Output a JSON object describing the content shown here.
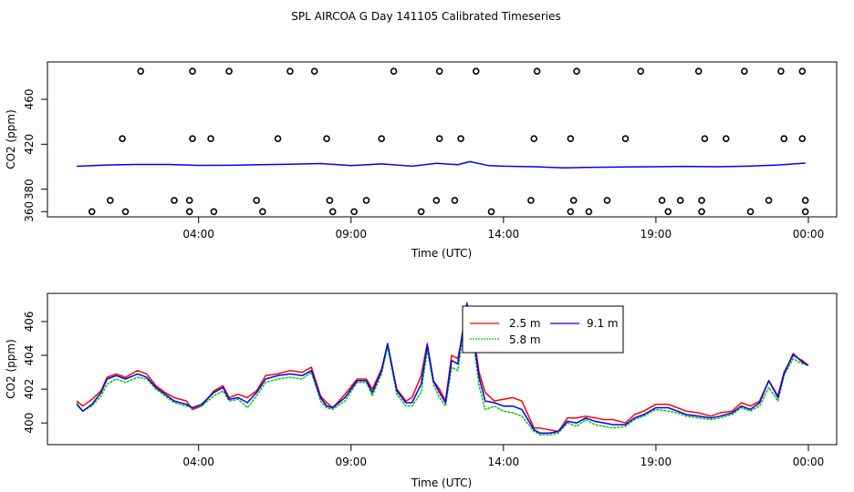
{
  "title": "SPL AIRCOA G  Day 141105  Calibrated Timeseries",
  "chart_data": [
    {
      "type": "line",
      "panel": "top",
      "xlabel": "Time (UTC)",
      "ylabel": "CO2 (ppm)",
      "xlim": [
        0,
        24
      ],
      "ylim": [
        357,
        490
      ],
      "x_ticks": [
        {
          "value": 4,
          "label": "04:00"
        },
        {
          "value": 9,
          "label": "09:00"
        },
        {
          "value": 14,
          "label": "14:00"
        },
        {
          "value": 19,
          "label": "19:00"
        },
        {
          "value": 24,
          "label": "00:00"
        }
      ],
      "y_ticks": [
        {
          "value": 360,
          "label": "360"
        },
        {
          "value": 380,
          "label": "380"
        },
        {
          "value": 420,
          "label": "420"
        },
        {
          "value": 460,
          "label": "460"
        }
      ],
      "series": [
        {
          "name": "mean",
          "color": "#0000ff",
          "x": [
            0,
            1,
            2,
            3,
            4,
            5,
            6,
            7,
            8,
            9,
            10,
            11,
            11.8,
            12.5,
            12.9,
            13.5,
            14,
            15,
            16,
            17,
            18,
            19,
            20,
            21,
            22,
            23,
            23.9
          ],
          "y": [
            400.4,
            401.5,
            402,
            402,
            401.2,
            401.3,
            401.8,
            402.2,
            402.8,
            401,
            402.5,
            400.5,
            403,
            401.8,
            404.5,
            401,
            400.5,
            400,
            399,
            399.5,
            399.8,
            400,
            400.3,
            400,
            400.5,
            401.5,
            403.2
          ]
        }
      ],
      "calibration_points": [
        {
          "x": 0.5,
          "y": 360
        },
        {
          "x": 1.6,
          "y": 360
        },
        {
          "x": 3.7,
          "y": 360
        },
        {
          "x": 4.5,
          "y": 360
        },
        {
          "x": 6.1,
          "y": 360
        },
        {
          "x": 8.4,
          "y": 360
        },
        {
          "x": 9.1,
          "y": 360
        },
        {
          "x": 11.3,
          "y": 360
        },
        {
          "x": 13.6,
          "y": 360
        },
        {
          "x": 16.2,
          "y": 360
        },
        {
          "x": 16.8,
          "y": 360
        },
        {
          "x": 19.4,
          "y": 360
        },
        {
          "x": 20.5,
          "y": 360
        },
        {
          "x": 22.1,
          "y": 360
        },
        {
          "x": 23.9,
          "y": 360
        },
        {
          "x": 1.1,
          "y": 370
        },
        {
          "x": 3.2,
          "y": 370
        },
        {
          "x": 3.7,
          "y": 370
        },
        {
          "x": 5.9,
          "y": 370
        },
        {
          "x": 8.3,
          "y": 370
        },
        {
          "x": 9.5,
          "y": 370
        },
        {
          "x": 11.8,
          "y": 370
        },
        {
          "x": 12.4,
          "y": 370
        },
        {
          "x": 14.9,
          "y": 370
        },
        {
          "x": 16.3,
          "y": 370
        },
        {
          "x": 17.4,
          "y": 370
        },
        {
          "x": 19.2,
          "y": 370
        },
        {
          "x": 19.8,
          "y": 370
        },
        {
          "x": 20.5,
          "y": 370
        },
        {
          "x": 22.7,
          "y": 370
        },
        {
          "x": 23.9,
          "y": 370
        },
        {
          "x": 1.5,
          "y": 425
        },
        {
          "x": 3.8,
          "y": 425
        },
        {
          "x": 4.4,
          "y": 425
        },
        {
          "x": 6.6,
          "y": 425
        },
        {
          "x": 8.2,
          "y": 425
        },
        {
          "x": 10.0,
          "y": 425
        },
        {
          "x": 11.9,
          "y": 425
        },
        {
          "x": 12.6,
          "y": 425
        },
        {
          "x": 15.0,
          "y": 425
        },
        {
          "x": 16.2,
          "y": 425
        },
        {
          "x": 18.0,
          "y": 425
        },
        {
          "x": 20.6,
          "y": 425
        },
        {
          "x": 21.3,
          "y": 425
        },
        {
          "x": 23.2,
          "y": 425
        },
        {
          "x": 23.8,
          "y": 425
        },
        {
          "x": 2.1,
          "y": 485
        },
        {
          "x": 3.8,
          "y": 485
        },
        {
          "x": 5.0,
          "y": 485
        },
        {
          "x": 7.0,
          "y": 485
        },
        {
          "x": 7.8,
          "y": 485
        },
        {
          "x": 10.4,
          "y": 485
        },
        {
          "x": 11.9,
          "y": 485
        },
        {
          "x": 13.1,
          "y": 485
        },
        {
          "x": 15.1,
          "y": 485
        },
        {
          "x": 16.4,
          "y": 485
        },
        {
          "x": 18.5,
          "y": 485
        },
        {
          "x": 20.4,
          "y": 485
        },
        {
          "x": 21.9,
          "y": 485
        },
        {
          "x": 23.1,
          "y": 485
        },
        {
          "x": 23.8,
          "y": 485
        }
      ]
    },
    {
      "type": "line",
      "panel": "bottom",
      "xlabel": "Time (UTC)",
      "ylabel": "CO2 (ppm)",
      "xlim": [
        0,
        24
      ],
      "ylim": [
        399.15,
        407.45
      ],
      "x_ticks": [
        {
          "value": 4,
          "label": "04:00"
        },
        {
          "value": 9,
          "label": "09:00"
        },
        {
          "value": 14,
          "label": "14:00"
        },
        {
          "value": 19,
          "label": "19:00"
        },
        {
          "value": 24,
          "label": "00:00"
        }
      ],
      "y_ticks": [
        {
          "value": 400,
          "label": "400"
        },
        {
          "value": 402,
          "label": "402"
        },
        {
          "value": 404,
          "label": "404"
        },
        {
          "value": 406,
          "label": "406"
        }
      ],
      "legend_position": "top-center",
      "series": [
        {
          "name": "2.5 m",
          "color": "#ff0000",
          "x": [
            0,
            0.2,
            0.5,
            0.8,
            1.0,
            1.3,
            1.6,
            2.0,
            2.3,
            2.6,
            2.9,
            3.2,
            3.6,
            3.8,
            4.1,
            4.5,
            4.8,
            5.0,
            5.3,
            5.6,
            5.9,
            6.2,
            6.6,
            7.0,
            7.4,
            7.7,
            8.0,
            8.2,
            8.4,
            8.8,
            9.2,
            9.5,
            9.7,
            10.0,
            10.2,
            10.5,
            10.8,
            11.0,
            11.3,
            11.5,
            11.7,
            11.9,
            12.1,
            12.3,
            12.5,
            12.8,
            13.0,
            13.2,
            13.4,
            13.7,
            14.0,
            14.3,
            14.6,
            15.0,
            15.2,
            15.5,
            15.8,
            16.1,
            16.4,
            16.7,
            17.0,
            17.3,
            17.6,
            18.0,
            18.3,
            18.6,
            19.0,
            19.4,
            19.7,
            20.0,
            20.4,
            20.8,
            21.1,
            21.5,
            21.8,
            22.1,
            22.4,
            22.7,
            23.0,
            23.2,
            23.5,
            23.8,
            24.0
          ],
          "y": [
            401.3,
            401.0,
            401.4,
            401.9,
            402.7,
            402.9,
            402.7,
            403.1,
            402.9,
            402.2,
            401.8,
            401.5,
            401.3,
            400.8,
            401.0,
            401.9,
            402.2,
            401.5,
            401.7,
            401.5,
            401.9,
            402.8,
            402.9,
            403.1,
            403.0,
            403.3,
            401.6,
            401.2,
            400.9,
            401.7,
            402.6,
            402.6,
            402.0,
            403.2,
            404.6,
            402.0,
            401.3,
            401.5,
            402.8,
            404.7,
            402.5,
            402.0,
            401.3,
            404.0,
            403.8,
            406.4,
            405.5,
            403.0,
            401.8,
            401.3,
            401.4,
            401.5,
            401.3,
            399.7,
            399.7,
            399.6,
            399.5,
            400.3,
            400.3,
            400.4,
            400.3,
            400.2,
            400.2,
            400.0,
            400.5,
            400.7,
            401.1,
            401.1,
            400.9,
            400.7,
            400.6,
            400.4,
            400.6,
            400.7,
            401.2,
            401.0,
            401.3,
            402.5,
            401.6,
            403.0,
            404.0,
            403.7,
            403.4
          ]
        },
        {
          "name": "5.8 m",
          "color": "#00cc00",
          "x": [
            0,
            0.2,
            0.5,
            0.8,
            1.0,
            1.3,
            1.6,
            2.0,
            2.3,
            2.6,
            2.9,
            3.2,
            3.6,
            3.8,
            4.1,
            4.5,
            4.8,
            5.0,
            5.3,
            5.6,
            5.9,
            6.2,
            6.6,
            7.0,
            7.4,
            7.7,
            8.0,
            8.2,
            8.4,
            8.8,
            9.2,
            9.5,
            9.7,
            10.0,
            10.2,
            10.5,
            10.8,
            11.0,
            11.3,
            11.5,
            11.7,
            11.9,
            12.1,
            12.3,
            12.5,
            12.8,
            13.0,
            13.2,
            13.4,
            13.7,
            14.0,
            14.3,
            14.6,
            15.0,
            15.2,
            15.5,
            15.8,
            16.1,
            16.4,
            16.7,
            17.0,
            17.3,
            17.6,
            18.0,
            18.3,
            18.6,
            19.0,
            19.4,
            19.7,
            20.0,
            20.4,
            20.8,
            21.1,
            21.5,
            21.8,
            22.1,
            22.4,
            22.7,
            23.0,
            23.2,
            23.5,
            23.8,
            24.0
          ],
          "y": [
            401.2,
            400.7,
            401.0,
            401.6,
            402.3,
            402.6,
            402.4,
            402.7,
            402.6,
            402.0,
            401.6,
            401.2,
            401.0,
            400.9,
            401.0,
            401.6,
            401.9,
            401.3,
            401.4,
            400.9,
            401.6,
            402.4,
            402.6,
            402.7,
            402.6,
            403.0,
            401.3,
            400.9,
            400.8,
            401.3,
            402.4,
            402.4,
            401.6,
            402.9,
            404.5,
            401.7,
            401.0,
            401.0,
            401.8,
            404.3,
            402.3,
            401.5,
            401.0,
            403.3,
            403.1,
            406.6,
            405.0,
            402.2,
            400.8,
            401.0,
            400.7,
            400.6,
            400.4,
            399.5,
            399.3,
            399.3,
            399.4,
            400.0,
            399.8,
            400.2,
            399.9,
            399.8,
            399.7,
            399.8,
            400.2,
            400.4,
            400.8,
            400.7,
            400.6,
            400.4,
            400.3,
            400.2,
            400.3,
            400.5,
            400.9,
            400.7,
            401.0,
            402.1,
            401.3,
            402.8,
            403.8,
            403.5,
            403.4
          ]
        },
        {
          "name": "9.1 m",
          "color": "#0000ff",
          "x": [
            0,
            0.2,
            0.5,
            0.8,
            1.0,
            1.3,
            1.6,
            2.0,
            2.3,
            2.6,
            2.9,
            3.2,
            3.6,
            3.8,
            4.1,
            4.5,
            4.8,
            5.0,
            5.3,
            5.6,
            5.9,
            6.2,
            6.6,
            7.0,
            7.4,
            7.7,
            8.0,
            8.2,
            8.4,
            8.8,
            9.2,
            9.5,
            9.7,
            10.0,
            10.2,
            10.5,
            10.8,
            11.0,
            11.3,
            11.5,
            11.7,
            11.9,
            12.1,
            12.3,
            12.5,
            12.8,
            13.0,
            13.2,
            13.4,
            13.7,
            14.0,
            14.3,
            14.6,
            15.0,
            15.2,
            15.5,
            15.8,
            16.1,
            16.4,
            16.7,
            17.0,
            17.3,
            17.6,
            18.0,
            18.3,
            18.6,
            19.0,
            19.4,
            19.7,
            20.0,
            20.4,
            20.8,
            21.1,
            21.5,
            21.8,
            22.1,
            22.4,
            22.7,
            23.0,
            23.2,
            23.5,
            23.8,
            24.0
          ],
          "y": [
            401.1,
            400.7,
            401.1,
            401.8,
            402.6,
            402.8,
            402.6,
            402.9,
            402.7,
            402.1,
            401.7,
            401.3,
            401.1,
            400.9,
            401.1,
            401.8,
            402.1,
            401.4,
            401.5,
            401.2,
            401.8,
            402.6,
            402.8,
            402.9,
            402.8,
            403.1,
            401.5,
            401.0,
            400.9,
            401.5,
            402.5,
            402.5,
            401.8,
            403.1,
            404.7,
            401.9,
            401.2,
            401.2,
            402.3,
            404.6,
            402.5,
            401.8,
            401.2,
            403.7,
            403.5,
            407.1,
            405.3,
            402.7,
            401.3,
            401.2,
            401.0,
            401.0,
            400.8,
            399.6,
            399.4,
            399.4,
            399.5,
            400.1,
            400.0,
            400.3,
            400.1,
            400.0,
            399.9,
            399.9,
            400.3,
            400.5,
            400.9,
            400.9,
            400.7,
            400.5,
            400.4,
            400.3,
            400.4,
            400.6,
            401.0,
            400.8,
            401.2,
            402.5,
            401.5,
            402.9,
            404.1,
            403.6,
            403.4
          ]
        }
      ]
    }
  ]
}
